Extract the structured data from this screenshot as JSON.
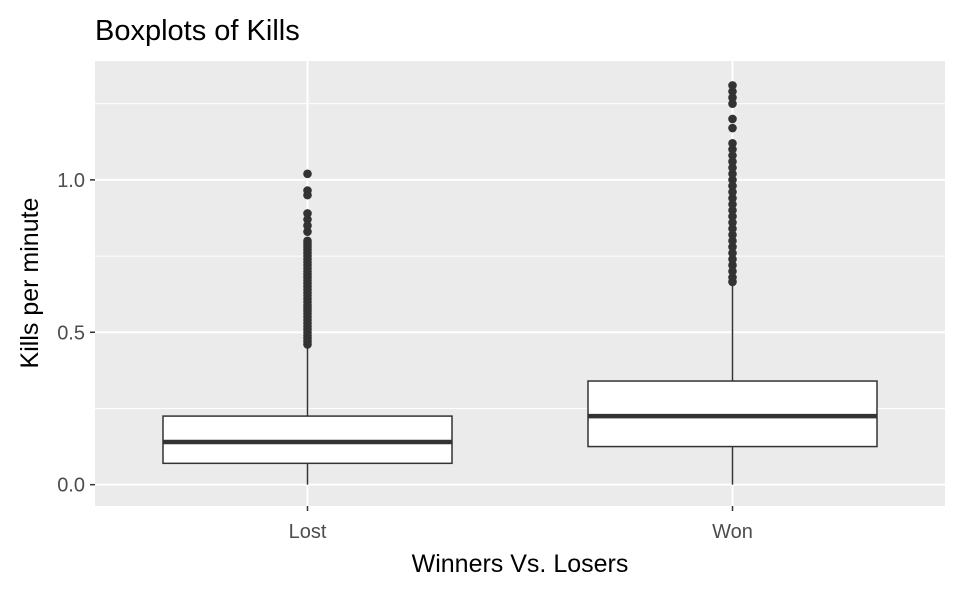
{
  "chart_data": {
    "type": "boxplot",
    "title": "Boxplots of Kills",
    "xlabel": "Winners Vs. Losers",
    "ylabel": "Kills per minute",
    "categories": [
      "Lost",
      "Won"
    ],
    "ylim": [
      -0.07,
      1.39
    ],
    "yticks": [
      0.0,
      0.5,
      1.0
    ],
    "ytick_labels": [
      "0.0",
      "0.5",
      "1.0"
    ],
    "grid": true,
    "legend": "none",
    "colors": {
      "panel_background": "#ebebeb",
      "grid": "#ffffff",
      "box_fill": "#ffffff",
      "box_line": "#333333",
      "outlier": "#333333",
      "text": "#000000",
      "tick_text": "#4d4d4d"
    },
    "boxes": [
      {
        "category": "Lost",
        "whisker_low": 0.0,
        "q1": 0.07,
        "median": 0.14,
        "q3": 0.225,
        "whisker_high": 0.455,
        "outliers": [
          0.46,
          0.47,
          0.48,
          0.49,
          0.5,
          0.51,
          0.52,
          0.53,
          0.54,
          0.55,
          0.56,
          0.57,
          0.58,
          0.59,
          0.6,
          0.61,
          0.62,
          0.63,
          0.64,
          0.65,
          0.66,
          0.67,
          0.68,
          0.69,
          0.7,
          0.71,
          0.72,
          0.73,
          0.74,
          0.75,
          0.76,
          0.77,
          0.78,
          0.79,
          0.8,
          0.83,
          0.85,
          0.87,
          0.89,
          0.95,
          0.965,
          1.02
        ]
      },
      {
        "category": "Won",
        "whisker_low": 0.0,
        "q1": 0.125,
        "median": 0.225,
        "q3": 0.34,
        "whisker_high": 0.66,
        "outliers": [
          0.665,
          0.68,
          0.7,
          0.72,
          0.74,
          0.76,
          0.78,
          0.8,
          0.82,
          0.84,
          0.86,
          0.88,
          0.9,
          0.92,
          0.94,
          0.96,
          0.98,
          1.0,
          1.02,
          1.04,
          1.06,
          1.08,
          1.1,
          1.12,
          1.17,
          1.2,
          1.25,
          1.27,
          1.29,
          1.31
        ]
      }
    ]
  }
}
